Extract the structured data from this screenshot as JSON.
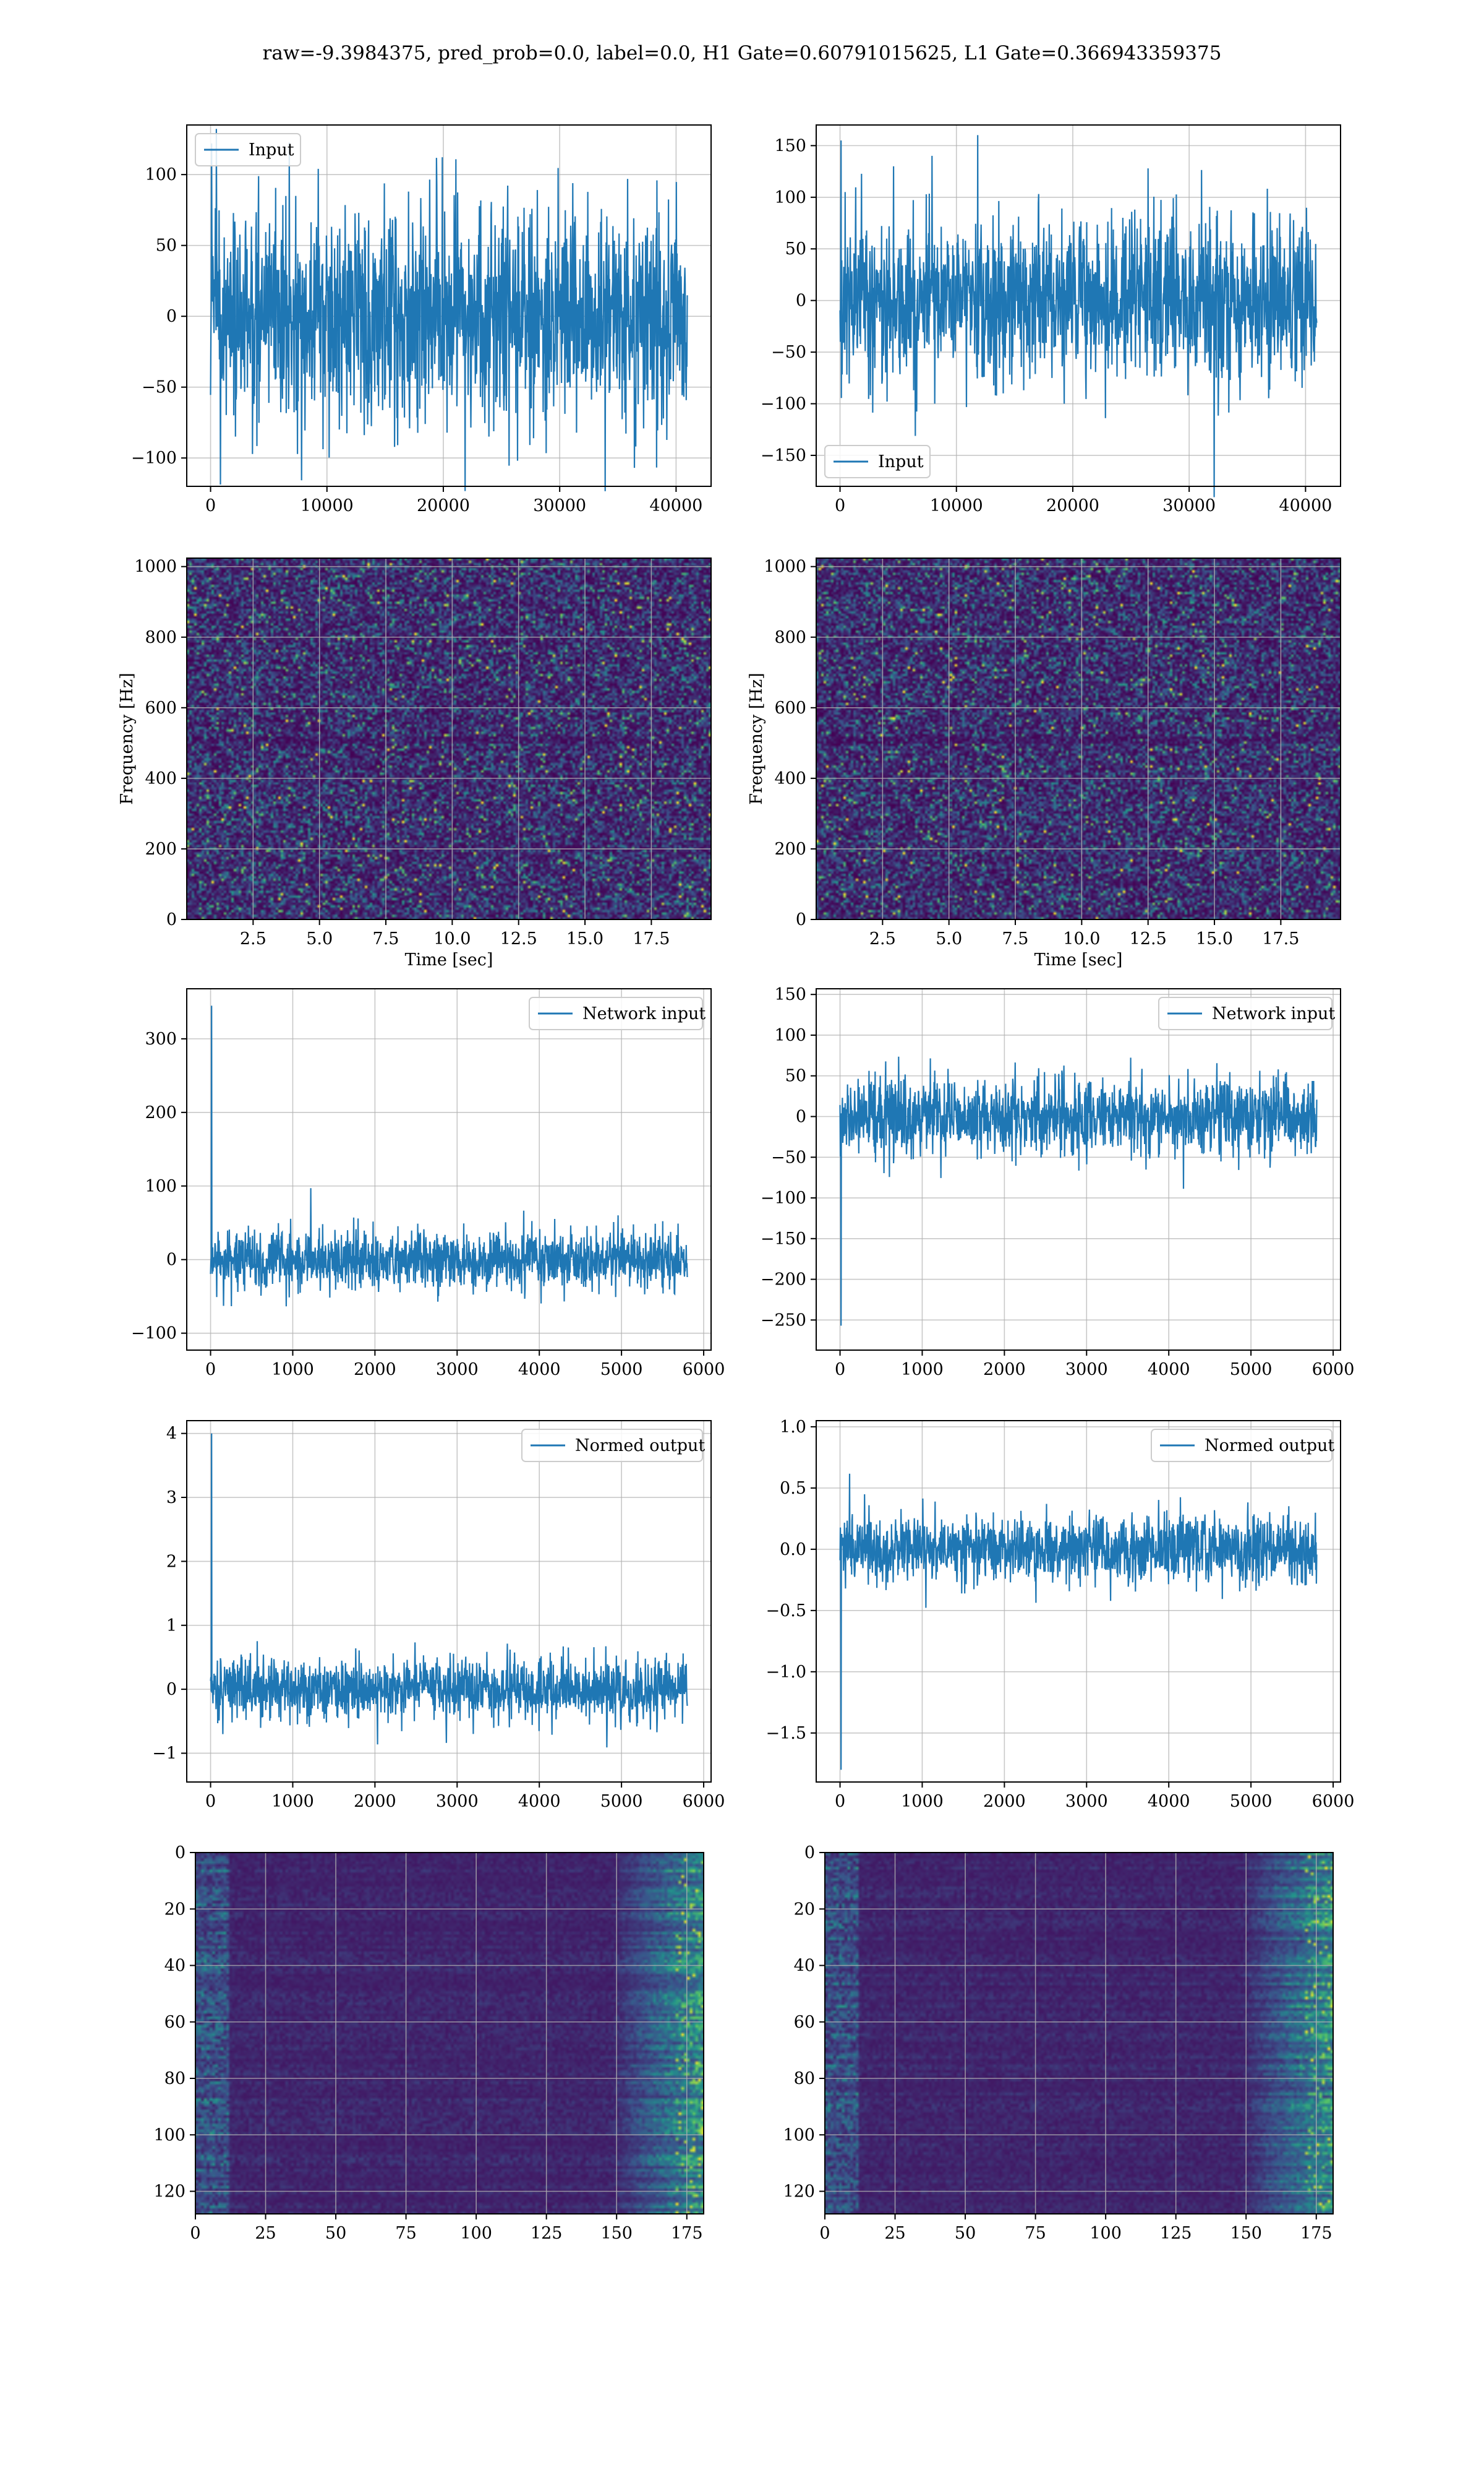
{
  "title": "raw=-9.3984375, pred_prob=0.0, label=0.0, H1 Gate=0.60791015625, L1 Gate=0.366943359375",
  "colors": {
    "line": "#1f77b4",
    "grid": "#b0b0b0",
    "viridis_low": "#440154",
    "viridis_high": "#fde725"
  },
  "chart_data": [
    {
      "id": "h1-input",
      "type": "line",
      "series": [
        {
          "name": "Input",
          "x_range": [
            0,
            40960
          ],
          "amplitude": 60,
          "spike_max": 122
        }
      ],
      "legend": "upper left",
      "xlim": [
        -2048,
        43008
      ],
      "ylim": [
        -120,
        135
      ],
      "xticks": [
        0,
        10000,
        20000,
        30000,
        40000
      ],
      "yticks": [
        -100,
        -50,
        0,
        50,
        100
      ],
      "grid": true,
      "xlabel": "",
      "ylabel": ""
    },
    {
      "id": "l1-input",
      "type": "line",
      "series": [
        {
          "name": "Input",
          "x_range": [
            0,
            40960
          ],
          "amplitude": 62,
          "spike_max": 155
        }
      ],
      "legend": "lower left",
      "xlim": [
        -2048,
        43008
      ],
      "ylim": [
        -180,
        170
      ],
      "xticks": [
        0,
        10000,
        20000,
        30000,
        40000
      ],
      "yticks": [
        -150,
        -100,
        -50,
        0,
        50,
        100,
        150
      ],
      "grid": true,
      "xlabel": "",
      "ylabel": ""
    },
    {
      "id": "h1-spectrogram",
      "type": "heatmap",
      "xlim": [
        0,
        19.75
      ],
      "ylim": [
        0,
        1024
      ],
      "xticks": [
        2.5,
        5.0,
        7.5,
        10.0,
        12.5,
        15.0,
        17.5
      ],
      "yticks": [
        0,
        200,
        400,
        600,
        800,
        1000
      ],
      "grid": true,
      "xlabel": "Time [sec]",
      "ylabel": "Frequency [Hz]"
    },
    {
      "id": "l1-spectrogram",
      "type": "heatmap",
      "xlim": [
        0,
        19.75
      ],
      "ylim": [
        0,
        1024
      ],
      "xticks": [
        2.5,
        5.0,
        7.5,
        10.0,
        12.5,
        15.0,
        17.5
      ],
      "yticks": [
        0,
        200,
        400,
        600,
        800,
        1000
      ],
      "grid": true,
      "xlabel": "Time [sec]",
      "ylabel": "Frequency [Hz]"
    },
    {
      "id": "h1-network-input",
      "type": "line",
      "series": [
        {
          "name": "Network input",
          "x_range": [
            0,
            5800
          ],
          "amplitude": 32,
          "spike_max": 345
        }
      ],
      "legend": "upper right",
      "xlim": [
        -290,
        6090
      ],
      "ylim": [
        -123,
        368
      ],
      "xticks": [
        0,
        1000,
        2000,
        3000,
        4000,
        5000,
        6000
      ],
      "yticks": [
        -100,
        0,
        100,
        200,
        300
      ],
      "grid": true,
      "xlabel": "",
      "ylabel": ""
    },
    {
      "id": "l1-network-input",
      "type": "line",
      "series": [
        {
          "name": "Network input",
          "x_range": [
            0,
            5800
          ],
          "amplitude": 38,
          "spike_min": -257
        }
      ],
      "legend": "upper right",
      "xlim": [
        -290,
        6090
      ],
      "ylim": [
        -287,
        157
      ],
      "xticks": [
        0,
        1000,
        2000,
        3000,
        4000,
        5000,
        6000
      ],
      "yticks": [
        -250,
        -200,
        -150,
        -100,
        -50,
        0,
        50,
        100,
        150
      ],
      "grid": true,
      "xlabel": "",
      "ylabel": ""
    },
    {
      "id": "h1-normed-output",
      "type": "line",
      "series": [
        {
          "name": "Normed output",
          "x_range": [
            0,
            5800
          ],
          "amplitude": 0.38,
          "spike_max": 4.0
        }
      ],
      "legend": "upper right",
      "xlim": [
        -290,
        6090
      ],
      "ylim": [
        -1.45,
        4.2
      ],
      "xticks": [
        0,
        1000,
        2000,
        3000,
        4000,
        5000,
        6000
      ],
      "yticks": [
        -1,
        0,
        1,
        2,
        3,
        4
      ],
      "grid": true,
      "xlabel": "",
      "ylabel": ""
    },
    {
      "id": "l1-normed-output",
      "type": "line",
      "series": [
        {
          "name": "Normed output",
          "x_range": [
            0,
            5800
          ],
          "amplitude": 0.22,
          "spike_min": -1.8
        }
      ],
      "legend": "upper right",
      "xlim": [
        -290,
        6090
      ],
      "ylim": [
        -1.9,
        1.05
      ],
      "xticks": [
        0,
        1000,
        2000,
        3000,
        4000,
        5000,
        6000
      ],
      "yticks": [
        -1.5,
        -1.0,
        -0.5,
        0.0,
        0.5,
        1.0
      ],
      "grid": true,
      "xlabel": "",
      "ylabel": ""
    },
    {
      "id": "h1-feature-map",
      "type": "heatmap",
      "xlim": [
        0,
        181
      ],
      "ylim": [
        128,
        0
      ],
      "xticks": [
        0,
        25,
        50,
        75,
        100,
        125,
        150,
        175
      ],
      "yticks": [
        0,
        20,
        40,
        60,
        80,
        100,
        120
      ],
      "grid": true,
      "xlabel": "",
      "ylabel": ""
    },
    {
      "id": "l1-feature-map",
      "type": "heatmap",
      "xlim": [
        0,
        181
      ],
      "ylim": [
        128,
        0
      ],
      "xticks": [
        0,
        25,
        50,
        75,
        100,
        125,
        150,
        175
      ],
      "yticks": [
        0,
        20,
        40,
        60,
        80,
        100,
        120
      ],
      "grid": true,
      "xlabel": "",
      "ylabel": ""
    }
  ]
}
